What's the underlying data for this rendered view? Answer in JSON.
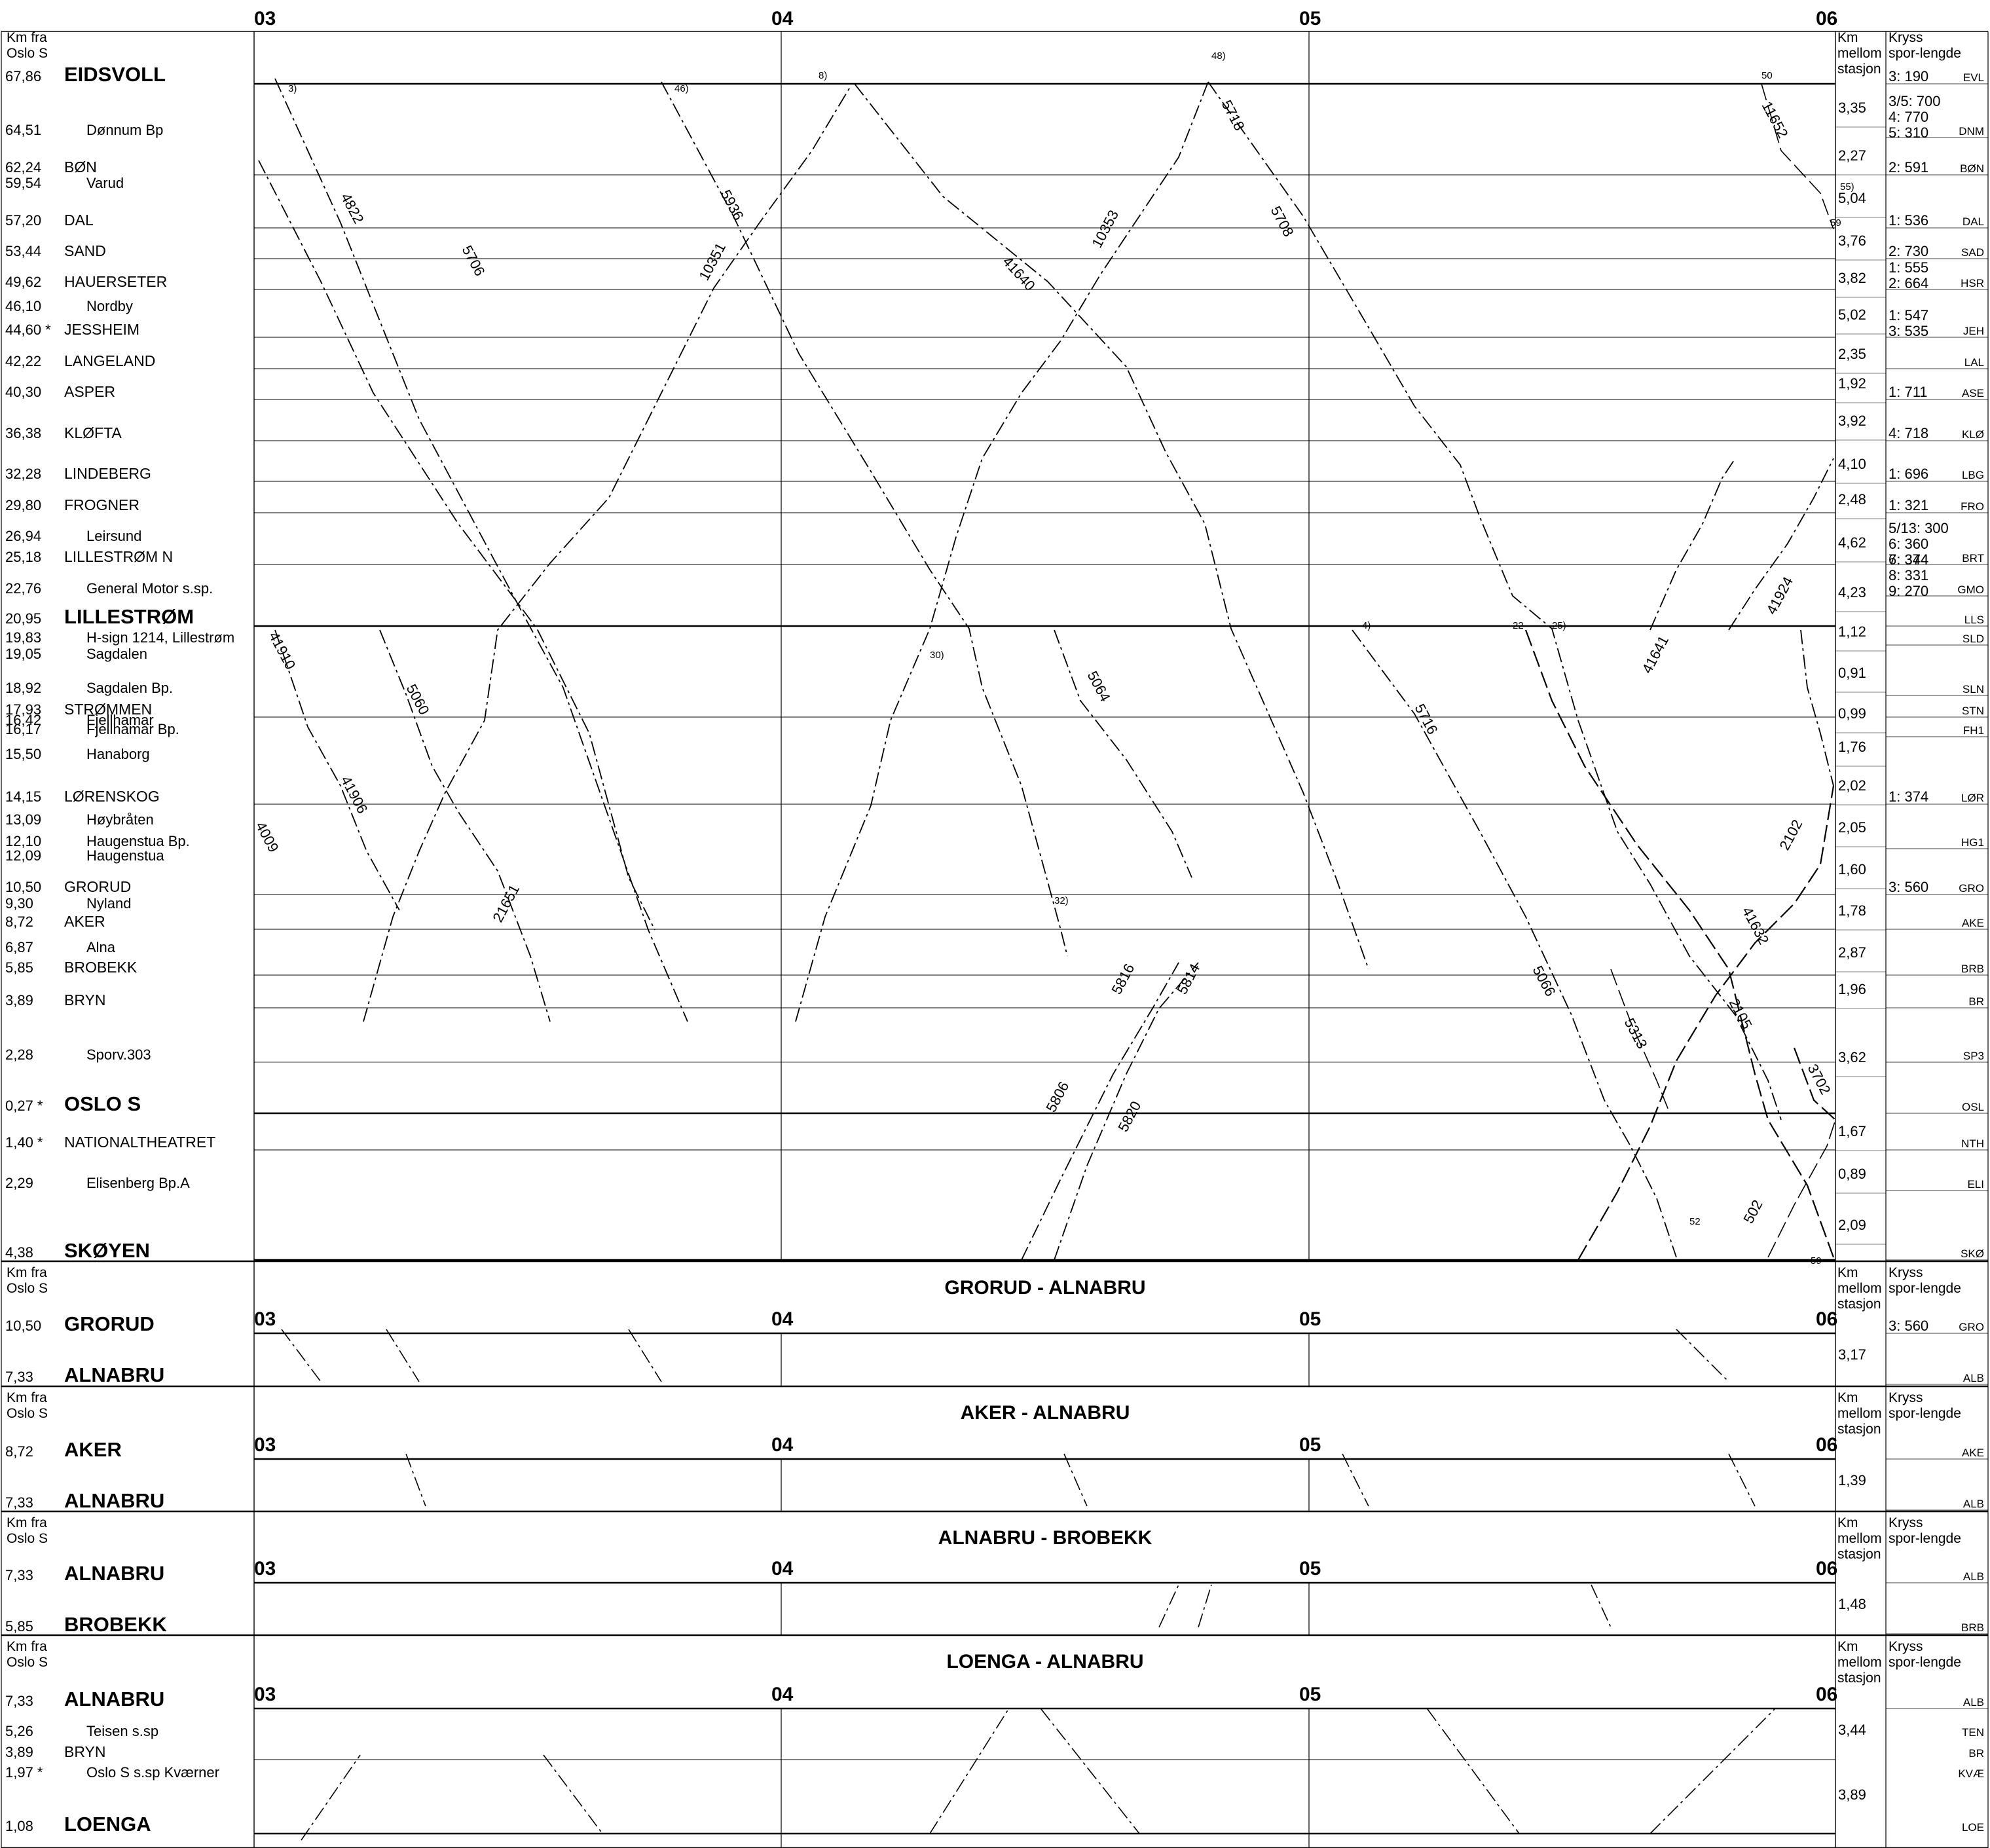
{
  "headers": {
    "left_km": [
      "Km fra",
      "Oslo S"
    ],
    "right_dist": [
      "Km",
      "mellom",
      "stasjon"
    ],
    "right_kryss": [
      "Kryss",
      "spor-lengde"
    ]
  },
  "hours": [
    "03",
    "04",
    "05",
    "06"
  ],
  "main": {
    "stations": [
      {
        "km": "67,86",
        "name": "EIDSVOLL",
        "style": "bold",
        "code": "EVL",
        "kryss": "3: 190"
      },
      {
        "km": "64,51",
        "name": "Dønnum Bp",
        "style": "stop",
        "code": "DNM",
        "kryss": "3/5: 700\n4: 770\n5: 310"
      },
      {
        "km": "62,24",
        "name": "BØN",
        "style": "station",
        "code": "BØN",
        "kryss": "2: 591"
      },
      {
        "km": "59,54",
        "name": "Varud",
        "style": "stop",
        "code": "",
        "kryss": ""
      },
      {
        "km": "57,20",
        "name": "DAL",
        "style": "station",
        "code": "DAL",
        "kryss": "1: 536"
      },
      {
        "km": "53,44",
        "name": "SAND",
        "style": "station",
        "code": "SAD",
        "kryss": "2: 730"
      },
      {
        "km": "49,62",
        "name": "HAUERSETER",
        "style": "station",
        "code": "HSR",
        "kryss": "1: 555\n2: 664"
      },
      {
        "km": "46,10",
        "name": "Nordby",
        "style": "stop",
        "code": "",
        "kryss": ""
      },
      {
        "km": "44,60 *",
        "name": "JESSHEIM",
        "style": "station",
        "code": "JEH",
        "kryss": "1: 547\n3: 535"
      },
      {
        "km": "42,22",
        "name": "LANGELAND",
        "style": "station",
        "code": "LAL",
        "kryss": ""
      },
      {
        "km": "40,30",
        "name": "ASPER",
        "style": "station",
        "code": "ASE",
        "kryss": "1: 711"
      },
      {
        "km": "36,38",
        "name": "KLØFTA",
        "style": "station",
        "code": "KLØ",
        "kryss": "4: 718"
      },
      {
        "km": "32,28",
        "name": "LINDEBERG",
        "style": "station",
        "code": "LBG",
        "kryss": "1: 696"
      },
      {
        "km": "29,80",
        "name": "FROGNER",
        "style": "station",
        "code": "FRO",
        "kryss": "1: 321"
      },
      {
        "km": "26,94",
        "name": "Leirsund",
        "style": "stop",
        "code": "",
        "kryss": ""
      },
      {
        "km": "25,18",
        "name": "LILLESTRØM N",
        "style": "station",
        "code": "BRT",
        "kryss": "5/13: 300\n6: 360\n6: 344"
      },
      {
        "km": "22,76",
        "name": "General Motor s.sp.",
        "style": "stop",
        "code": "GMO",
        "kryss": "7: 374\n8: 331\n9: 270"
      },
      {
        "km": "20,95",
        "name": "LILLESTRØM",
        "style": "bold",
        "code": "LLS",
        "kryss": ""
      },
      {
        "km": "19,83",
        "name": "H-sign 1214, Lillestrøm",
        "style": "stop",
        "code": "SLD",
        "kryss": ""
      },
      {
        "km": "19,05",
        "name": "Sagdalen",
        "style": "stop",
        "code": "",
        "kryss": ""
      },
      {
        "km": "18,92",
        "name": "Sagdalen Bp.",
        "style": "stop",
        "code": "SLN",
        "kryss": ""
      },
      {
        "km": "17,93",
        "name": "STRØMMEN",
        "style": "station",
        "code": "STN",
        "kryss": ""
      },
      {
        "km": "16,42",
        "name": "Fjellhamar",
        "style": "stop",
        "code": "",
        "kryss": ""
      },
      {
        "km": "16,17",
        "name": "Fjellhamar Bp.",
        "style": "stop",
        "code": "FH1",
        "kryss": ""
      },
      {
        "km": "15,50",
        "name": "Hanaborg",
        "style": "stop",
        "code": "",
        "kryss": ""
      },
      {
        "km": "14,15",
        "name": "LØRENSKOG",
        "style": "station",
        "code": "LØR",
        "kryss": "1: 374"
      },
      {
        "km": "13,09",
        "name": "Høybråten",
        "style": "stop",
        "code": "",
        "kryss": ""
      },
      {
        "km": "12,10",
        "name": "Haugenstua Bp.",
        "style": "stop",
        "code": "HG1",
        "kryss": ""
      },
      {
        "km": "12,09",
        "name": "Haugenstua",
        "style": "stop",
        "code": "",
        "kryss": ""
      },
      {
        "km": "10,50",
        "name": "GRORUD",
        "style": "station",
        "code": "GRO",
        "kryss": "3: 560"
      },
      {
        "km": "9,30",
        "name": "Nyland",
        "style": "stop",
        "code": "",
        "kryss": ""
      },
      {
        "km": "8,72",
        "name": "AKER",
        "style": "station",
        "code": "AKE",
        "kryss": ""
      },
      {
        "km": "6,87",
        "name": "Alna",
        "style": "stop",
        "code": "",
        "kryss": ""
      },
      {
        "km": "5,85",
        "name": "BROBEKK",
        "style": "station",
        "code": "BRB",
        "kryss": ""
      },
      {
        "km": "3,89",
        "name": "BRYN",
        "style": "station",
        "code": "BR",
        "kryss": ""
      },
      {
        "km": "2,28",
        "name": "Sporv.303",
        "style": "stop",
        "code": "SP3",
        "kryss": ""
      },
      {
        "km": "0,27 *",
        "name": "OSLO S",
        "style": "bold",
        "code": "OSL",
        "kryss": ""
      },
      {
        "km": "1,40 *",
        "name": "NATIONALTHEATRET",
        "style": "station",
        "code": "NTH",
        "kryss": ""
      },
      {
        "km": "2,29",
        "name": "Elisenberg Bp.A",
        "style": "stop",
        "code": "ELI",
        "kryss": ""
      },
      {
        "km": "4,38",
        "name": "SKØYEN",
        "style": "bold",
        "code": "SKØ",
        "kryss": ""
      }
    ],
    "distances": [
      "3,35",
      "2,27",
      "5,04",
      "3,76",
      "3,82",
      "5,02",
      "2,35",
      "1,92",
      "3,92",
      "4,10",
      "2,48",
      "4,62",
      "4,23",
      "1,12",
      "0,91",
      "0,99",
      "1,76",
      "2,02",
      "2,05",
      "1,60",
      "1,78",
      "2,87",
      "1,96",
      "3,62",
      "1,67",
      "0,89",
      "2,09"
    ],
    "train_labels": [
      "4822",
      "5706",
      "5936",
      "10351",
      "41640",
      "10353",
      "5718",
      "5708",
      "11652",
      "41910",
      "5060",
      "41906",
      "4009",
      "21651",
      "41924",
      "5716",
      "41632",
      "41641",
      "2102",
      "5066",
      "5064",
      "2105",
      "5806",
      "5816",
      "5820",
      "5814",
      "3702",
      "5313",
      "502"
    ]
  },
  "sections": [
    {
      "title": "GRORUD - ALNABRU",
      "from": {
        "km": "10,50",
        "name": "GRORUD",
        "code": "GRO",
        "kryss": "3: 560"
      },
      "to": {
        "km": "7,33",
        "name": "ALNABRU",
        "code": "ALB",
        "kryss": ""
      },
      "distance": "3,17"
    },
    {
      "title": "AKER - ALNABRU",
      "from": {
        "km": "8,72",
        "name": "AKER",
        "code": "AKE",
        "kryss": ""
      },
      "to": {
        "km": "7,33",
        "name": "ALNABRU",
        "code": "ALB",
        "kryss": ""
      },
      "distance": "1,39"
    },
    {
      "title": "ALNABRU - BROBEKK",
      "from": {
        "km": "7,33",
        "name": "ALNABRU",
        "code": "ALB",
        "kryss": ""
      },
      "to": {
        "km": "5,85",
        "name": "BROBEKK",
        "code": "BRB",
        "kryss": ""
      },
      "distance": "1,48"
    },
    {
      "title": "LOENGA - ALNABRU",
      "from": {
        "km": "7,33",
        "name": "ALNABRU",
        "code": "ALB",
        "kryss": ""
      },
      "to": {
        "km": "1,08",
        "name": "LOENGA",
        "code": "LOE",
        "kryss": ""
      },
      "distance": "3,89",
      "mids": [
        {
          "km": "5,26",
          "name": "Teisen s.sp",
          "code": "TEN",
          "dist": "3,44"
        },
        {
          "km": "3,89",
          "name": "BRYN",
          "code": "BR",
          "dist": ""
        },
        {
          "km": "1,97 *",
          "name": "Oslo S s.sp Kværner",
          "code": "KVÆ",
          "dist": ""
        }
      ]
    }
  ],
  "colors": {
    "line": "#000000",
    "grid": "#555555",
    "background": "#ffffff"
  }
}
